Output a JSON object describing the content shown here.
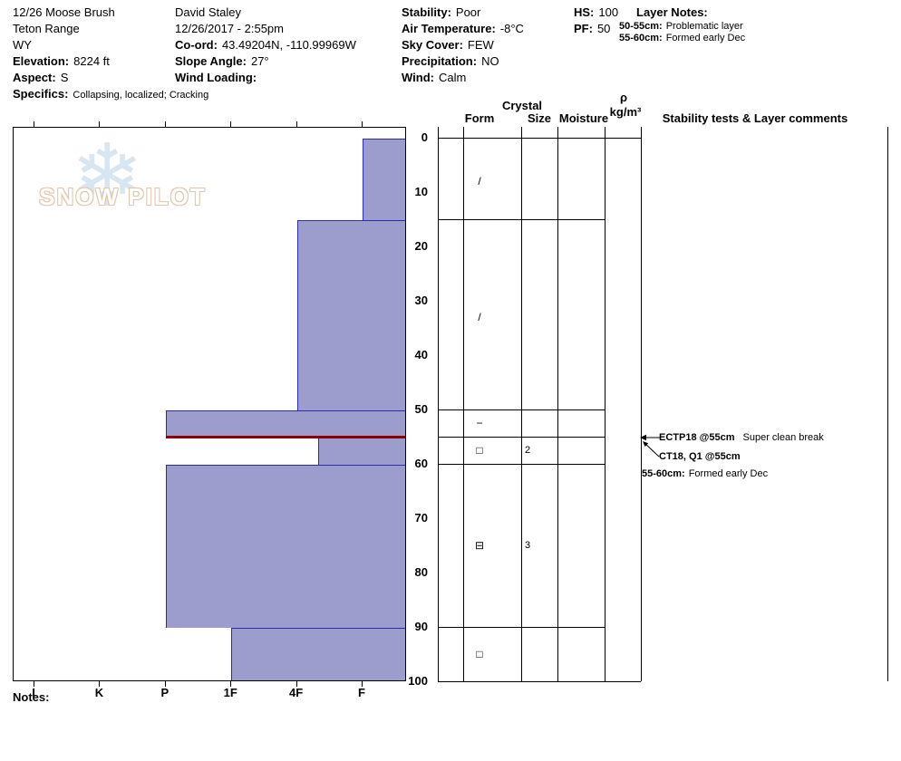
{
  "title_block": {
    "pit_name": "12/26 Moose Brush",
    "range": "Teton Range",
    "state": "WY",
    "elevation_label": "Elevation:",
    "elevation_value": "8224 ft",
    "aspect_label": "Aspect:",
    "aspect_value": "S",
    "specifics_label": "Specifics:",
    "specifics_value": "Collapsing, localized;  Cracking"
  },
  "observer_block": {
    "observer": "David Staley",
    "datetime": "12/26/2017 - 2:55pm",
    "coord_label": "Co-ord:",
    "coord_value": "43.49204N, -110.99969W",
    "slope_label": "Slope Angle:",
    "slope_value": "27°",
    "wind_loading_label": "Wind Loading:",
    "wind_loading_value": ""
  },
  "conditions_block": {
    "stability_label": "Stability:",
    "stability_value": "Poor",
    "air_temp_label": "Air Temperature:",
    "air_temp_value": "-8°C",
    "sky_label": "Sky Cover:",
    "sky_value": "FEW",
    "precip_label": "Precipitation:",
    "precip_value": "NO",
    "wind_label": "Wind:",
    "wind_value": "Calm"
  },
  "totals_block": {
    "hs_label": "HS:",
    "hs_value": "100",
    "pf_label": "PF:",
    "pf_value": "50"
  },
  "layer_notes_block": {
    "title": "Layer Notes:",
    "notes": [
      {
        "range": "50-55cm:",
        "text": "Problematic layer"
      },
      {
        "range": "55-60cm:",
        "text": "Formed early Dec"
      }
    ]
  },
  "watermark": {
    "text": "SNOW PILOT"
  },
  "table_headers": {
    "crystal": "Crystal",
    "form": "Form",
    "size": "Size",
    "moisture": "Moisture",
    "rho": "ρ",
    "rho_units": "kg/m³",
    "stability": "Stability tests & Layer comments"
  },
  "notes_label": "Notes:",
  "colors": {
    "bar_fill": "#9c9ccd",
    "bar_border": "#2a2ab4",
    "failure_line": "#8b0000",
    "watermark_snowflake": "#bdd7e9",
    "watermark_text": "#cfa070"
  },
  "chart_data": {
    "type": "bar",
    "title": "Snow hardness profile (SnowPilot pit graph)",
    "depth_unit": "cm",
    "depth_ticks": [
      0,
      10,
      20,
      30,
      40,
      50,
      60,
      70,
      80,
      90,
      100
    ],
    "hardness_scale": [
      "I",
      "K",
      "P",
      "1F",
      "4F",
      "F"
    ],
    "total_depth_cm": 100,
    "layers": [
      {
        "top_cm": 0,
        "bottom_cm": 15,
        "hardness": "F",
        "hardness_index": 5
      },
      {
        "top_cm": 15,
        "bottom_cm": 50,
        "hardness": "4F",
        "hardness_index": 4
      },
      {
        "top_cm": 50,
        "bottom_cm": 55,
        "hardness": "P",
        "hardness_index": 2
      },
      {
        "top_cm": 55,
        "bottom_cm": 60,
        "hardness": "4F-F",
        "hardness_index": 4.33
      },
      {
        "top_cm": 60,
        "bottom_cm": 90,
        "hardness": "P",
        "hardness_index": 2
      },
      {
        "top_cm": 90,
        "bottom_cm": 100,
        "hardness": "1F",
        "hardness_index": 3
      }
    ],
    "failure_plane": {
      "depth_cm": 55,
      "hardness_index": 2
    },
    "layer_boundaries_cm": [
      0,
      15,
      50,
      55,
      60,
      90,
      100
    ],
    "crystals": [
      {
        "depth_cm": 8,
        "form": "/",
        "size": ""
      },
      {
        "depth_cm": 33,
        "form": "/",
        "size": ""
      },
      {
        "depth_cm": 52.5,
        "form": "−",
        "size": ""
      },
      {
        "depth_cm": 57.5,
        "form": "□",
        "size": "2"
      },
      {
        "depth_cm": 75,
        "form": "⊟",
        "size": "3"
      },
      {
        "depth_cm": 95,
        "form": "□",
        "size": ""
      }
    ],
    "tests": [
      {
        "name": "ECTP18 @55cm",
        "comment": "Super clean break"
      },
      {
        "name": "CT18, Q1 @55cm",
        "comment": ""
      }
    ],
    "test_layer_comment": {
      "range": "55-60cm:",
      "text": "Formed early Dec"
    }
  }
}
